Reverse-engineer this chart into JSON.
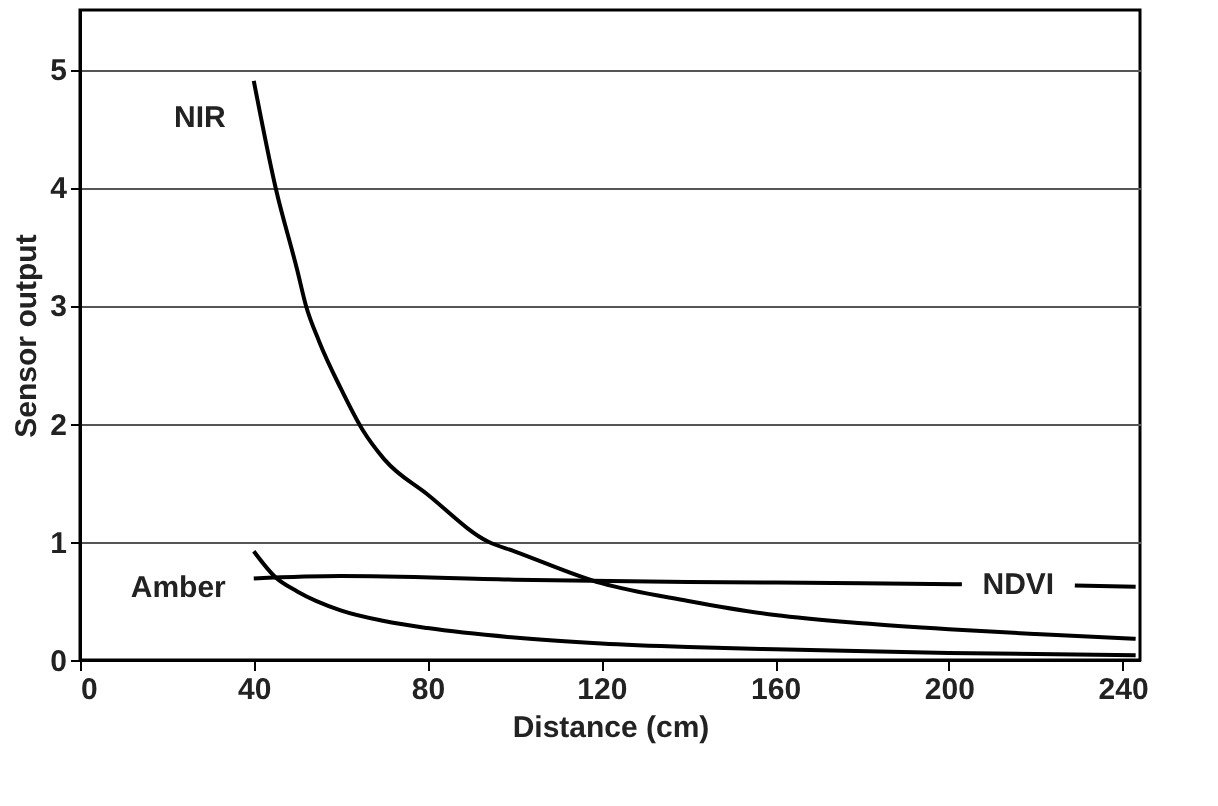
{
  "chart_data": {
    "type": "line",
    "xlabel": "Distance (cm)",
    "ylabel": "Sensor output",
    "xlim": [
      0,
      244
    ],
    "xticks": [
      0,
      40,
      80,
      120,
      160,
      200,
      240
    ],
    "ylim": [
      0,
      5.5
    ],
    "yticks": [
      0,
      1,
      2,
      3,
      4,
      5
    ],
    "grid": "y",
    "line_style": "solid",
    "marker": "none",
    "series": [
      {
        "name": "NIR",
        "color": "#000000",
        "x": [
          40,
          45,
          50,
          52,
          55,
          60,
          65,
          70,
          80,
          94,
          100,
          120,
          140,
          160,
          180,
          200,
          220,
          243
        ],
        "values": [
          4.9,
          4.0,
          3.3,
          3.0,
          2.7,
          2.3,
          1.95,
          1.7,
          1.4,
          1.0,
          0.92,
          0.65,
          0.5,
          0.38,
          0.31,
          0.26,
          0.22,
          0.18
        ]
      },
      {
        "name": "Amber",
        "color": "#000000",
        "x": [
          40,
          45,
          50,
          60,
          70,
          80,
          100,
          120,
          140,
          160,
          200,
          243
        ],
        "values": [
          0.92,
          0.7,
          0.58,
          0.42,
          0.33,
          0.27,
          0.19,
          0.14,
          0.11,
          0.09,
          0.06,
          0.04
        ]
      },
      {
        "name": "NDVI",
        "color": "#000000",
        "x": [
          40,
          60,
          100,
          140,
          180,
          203,
          216,
          229,
          243
        ],
        "values": [
          0.69,
          0.71,
          0.68,
          0.66,
          0.65,
          0.64,
          null,
          0.63,
          0.62
        ]
      }
    ]
  }
}
